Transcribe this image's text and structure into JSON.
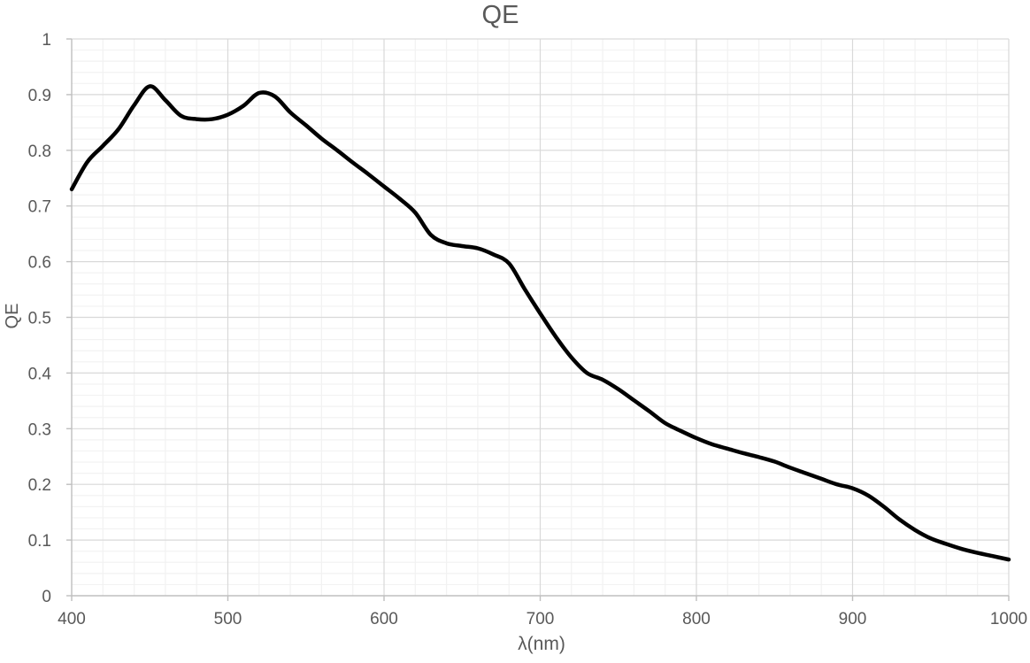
{
  "page": {
    "background": "#ffffff"
  },
  "chart_data": {
    "type": "line",
    "title": "QE",
    "xlabel": "λ(nm)",
    "ylabel": "QE",
    "xlim": [
      400,
      1000
    ],
    "ylim": [
      0,
      1
    ],
    "x_major_ticks": [
      400,
      500,
      600,
      700,
      800,
      900,
      1000
    ],
    "x_tick_labels": [
      "400",
      "500",
      "600",
      "700",
      "800",
      "900",
      "1000"
    ],
    "y_major_ticks": [
      0,
      0.1,
      0.2,
      0.3,
      0.4,
      0.5,
      0.6,
      0.7,
      0.8,
      0.9,
      1
    ],
    "y_tick_labels": [
      "0",
      "0.1",
      "0.2",
      "0.3",
      "0.4",
      "0.5",
      "0.6",
      "0.7",
      "0.8",
      "0.9",
      "1"
    ],
    "x_minor_step": 20,
    "y_minor_step": 0.02,
    "grid": {
      "major": true,
      "minor": true
    },
    "legend": {
      "visible": false
    },
    "line_smoothing": true,
    "style": {
      "title_color": "#595959",
      "axis_title_color": "#595959",
      "tick_label_color": "#595959",
      "major_grid_color": "#d9d9d9",
      "minor_grid_color": "#f2f2f2",
      "axis_line_color": "#bfbfbf",
      "tick_label_font_size": 19
    },
    "series": [
      {
        "name": "QE",
        "color": "#000000",
        "stroke_width": 4.5,
        "x": [
          400,
          410,
          420,
          430,
          440,
          450,
          460,
          470,
          480,
          490,
          500,
          510,
          520,
          530,
          540,
          550,
          560,
          570,
          580,
          590,
          600,
          610,
          620,
          630,
          640,
          650,
          660,
          670,
          680,
          690,
          700,
          710,
          720,
          730,
          740,
          750,
          760,
          770,
          780,
          790,
          800,
          810,
          820,
          830,
          840,
          850,
          860,
          870,
          880,
          890,
          900,
          910,
          920,
          930,
          940,
          950,
          960,
          970,
          980,
          990,
          1000
        ],
        "y": [
          0.73,
          0.779,
          0.808,
          0.838,
          0.881,
          0.915,
          0.89,
          0.862,
          0.856,
          0.856,
          0.864,
          0.88,
          0.903,
          0.897,
          0.868,
          0.845,
          0.821,
          0.8,
          0.778,
          0.757,
          0.735,
          0.713,
          0.688,
          0.648,
          0.633,
          0.628,
          0.624,
          0.613,
          0.597,
          0.551,
          0.507,
          0.465,
          0.428,
          0.4,
          0.388,
          0.371,
          0.351,
          0.331,
          0.31,
          0.296,
          0.283,
          0.272,
          0.264,
          0.256,
          0.249,
          0.241,
          0.23,
          0.22,
          0.21,
          0.2,
          0.193,
          0.18,
          0.16,
          0.137,
          0.118,
          0.103,
          0.093,
          0.084,
          0.077,
          0.071,
          0.065
        ]
      }
    ]
  }
}
